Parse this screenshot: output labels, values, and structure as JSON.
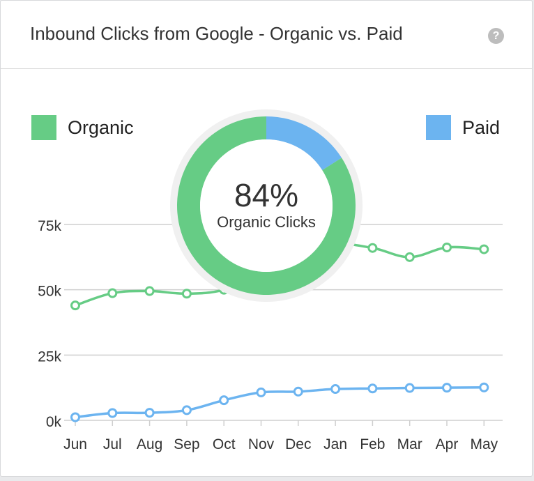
{
  "card": {
    "title": "Inbound Clicks from Google - Organic vs. Paid",
    "help_icon": "question-circle-icon",
    "help_glyph": "?"
  },
  "legend": {
    "organic": {
      "label": "Organic",
      "color": "#66cc85"
    },
    "paid": {
      "label": "Paid",
      "color": "#6cb4f0"
    }
  },
  "donut": {
    "percent_label": "84%",
    "caption": "Organic Clicks",
    "organic_share": 0.84,
    "paid_share": 0.16
  },
  "chart_data": {
    "type": "line",
    "categories": [
      "Jun",
      "Jul",
      "Aug",
      "Sep",
      "Oct",
      "Nov",
      "Dec",
      "Jan",
      "Feb",
      "Mar",
      "Apr",
      "May"
    ],
    "series": [
      {
        "name": "Organic",
        "color": "#66cc85",
        "values": [
          44000,
          48700,
          49500,
          48500,
          50000,
          56000,
          60000,
          67000,
          66000,
          62500,
          66200,
          65500
        ]
      },
      {
        "name": "Paid",
        "color": "#6cb4f0",
        "values": [
          1200,
          2800,
          2900,
          3900,
          7700,
          10700,
          11000,
          12000,
          12200,
          12400,
          12500,
          12600
        ]
      }
    ],
    "yticks": [
      0,
      25000,
      50000,
      75000
    ],
    "ytick_labels": [
      "0k",
      "25k",
      "50k",
      "75k"
    ],
    "ylim": [
      0,
      75000
    ],
    "grid": true,
    "legend_placement": "top"
  }
}
